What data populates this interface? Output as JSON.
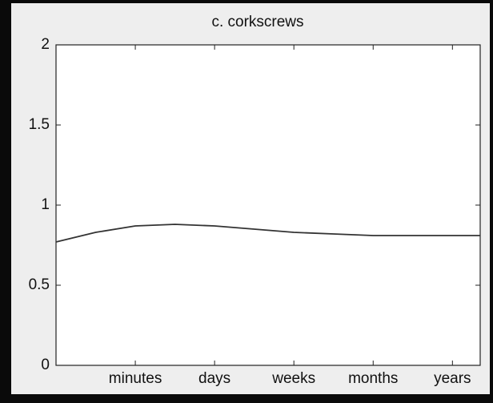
{
  "chart_data": {
    "type": "line",
    "title": "c. corkscrews",
    "x": [
      0,
      0.5,
      1,
      1.5,
      2,
      2.5,
      3,
      3.5,
      4,
      4.5,
      5,
      5.35
    ],
    "series": [
      {
        "color": "#333333",
        "values": [
          0.77,
          0.83,
          0.87,
          0.88,
          0.87,
          0.85,
          0.83,
          0.82,
          0.81,
          0.81,
          0.81,
          0.81
        ]
      }
    ],
    "xlim": [
      0,
      5.35
    ],
    "xticks": [
      {
        "value": 1,
        "label": "minutes"
      },
      {
        "value": 2,
        "label": "days"
      },
      {
        "value": 3,
        "label": "weeks"
      },
      {
        "value": 4,
        "label": "months"
      },
      {
        "value": 5,
        "label": "years"
      }
    ],
    "ylim": [
      0,
      2
    ],
    "yticks": [
      0,
      0.5,
      1,
      1.5,
      2
    ],
    "grid": false
  }
}
